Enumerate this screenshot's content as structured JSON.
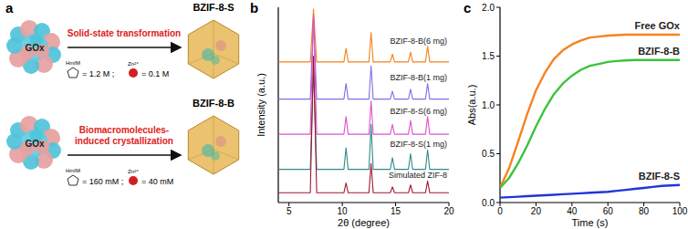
{
  "diagram": {
    "title": "a",
    "protein": "GOx",
    "ligand": "HmIM",
    "zinc": "Zn²⁺",
    "rows": [
      {
        "method": [
          "Solid-state transformation"
        ],
        "product": "BZIF-8-S",
        "ligand_conc": "= 1.2 M ;",
        "zinc_conc": "= 0.1 M"
      },
      {
        "method": [
          "Biomacromolecules-",
          "induced crystallization"
        ],
        "product": "BZIF-8-B",
        "ligand_conc": "= 160 mM ;",
        "zinc_conc": "= 40 mM"
      }
    ]
  },
  "chart_data": [
    {
      "title": "b",
      "type": "line",
      "xlabel": "2θ (degree)",
      "ylabel": "Intensity (a.u.)",
      "x": [
        4,
        7.0,
        7.3,
        7.6,
        10.15,
        10.35,
        10.55,
        12.5,
        12.7,
        12.9,
        14.5,
        14.7,
        14.9,
        16.2,
        16.4,
        16.6,
        17.8,
        18.0,
        18.2,
        20
      ],
      "xlim": [
        4,
        20
      ],
      "xticks": [
        5,
        10,
        15,
        20
      ],
      "ylim": [
        0,
        100
      ],
      "tick_labels": "x",
      "series": [
        {
          "name": "BZIF-8-B(6 mg)",
          "color": "#f57f17",
          "values": [
            72,
            72,
            99,
            72,
            72,
            79,
            72,
            72,
            87,
            72,
            72,
            76,
            72,
            72,
            77,
            72,
            72,
            80,
            72,
            72
          ]
        },
        {
          "name": "BZIF-8-B(1 mg)",
          "color": "#7e6fe6",
          "values": [
            53,
            53,
            95,
            53,
            53,
            61,
            53,
            53,
            70,
            53,
            53,
            57,
            53,
            53,
            58,
            53,
            53,
            61,
            53,
            53
          ]
        },
        {
          "name": "BZIF-8-S(6 mg)",
          "color": "#e052c9",
          "values": [
            35,
            35,
            96,
            35,
            35,
            44,
            35,
            35,
            52,
            35,
            35,
            40,
            35,
            35,
            42,
            35,
            35,
            44,
            35,
            35
          ]
        },
        {
          "name": "BZIF-8-S(1 mg)",
          "color": "#2e8b8b",
          "values": [
            17,
            17,
            69,
            17,
            17,
            28,
            17,
            17,
            40,
            17,
            17,
            23,
            17,
            17,
            25,
            17,
            17,
            27,
            17,
            17
          ]
        },
        {
          "name": "Simulated ZIF-8",
          "color": "#a3152d",
          "values": [
            5,
            5,
            75,
            5,
            5,
            10,
            5,
            5,
            20,
            5,
            5,
            8,
            5,
            5,
            9,
            5,
            5,
            11,
            5,
            5
          ]
        }
      ]
    },
    {
      "title": "c",
      "type": "line",
      "xlabel": "Time (s)",
      "ylabel": "Abs(a.u.)",
      "x": [
        0,
        5,
        10,
        15,
        20,
        25,
        30,
        35,
        40,
        45,
        50,
        55,
        60,
        65,
        70,
        75,
        80,
        85,
        90,
        95,
        100
      ],
      "xlim": [
        0,
        100
      ],
      "xticks": [
        0,
        20,
        40,
        60,
        80,
        100
      ],
      "ylim": [
        0,
        2
      ],
      "yticks": [
        {
          "value": 0,
          "label": "0.0"
        },
        {
          "value": 0.5,
          "label": "0.5"
        },
        {
          "value": 1,
          "label": "1.0"
        },
        {
          "value": 1.5,
          "label": "1.5"
        },
        {
          "value": 2,
          "label": "2.0"
        }
      ],
      "series": [
        {
          "name": "Free GOx",
          "color": "#f7821e",
          "values": [
            0.15,
            0.35,
            0.62,
            0.9,
            1.15,
            1.33,
            1.47,
            1.56,
            1.62,
            1.66,
            1.69,
            1.7,
            1.71,
            1.715,
            1.72,
            1.72,
            1.72,
            1.72,
            1.72,
            1.72,
            1.72
          ]
        },
        {
          "name": "BZIF-8-B",
          "color": "#3cc23c",
          "values": [
            0.15,
            0.25,
            0.4,
            0.58,
            0.78,
            0.96,
            1.11,
            1.22,
            1.3,
            1.36,
            1.4,
            1.42,
            1.44,
            1.45,
            1.455,
            1.46,
            1.46,
            1.46,
            1.46,
            1.46,
            1.46
          ]
        },
        {
          "name": "BZIF-8-S",
          "color": "#1f35d8",
          "values": [
            0.05,
            0.055,
            0.06,
            0.065,
            0.07,
            0.075,
            0.08,
            0.085,
            0.09,
            0.095,
            0.1,
            0.105,
            0.11,
            0.12,
            0.13,
            0.14,
            0.15,
            0.16,
            0.17,
            0.175,
            0.18
          ]
        }
      ]
    }
  ]
}
